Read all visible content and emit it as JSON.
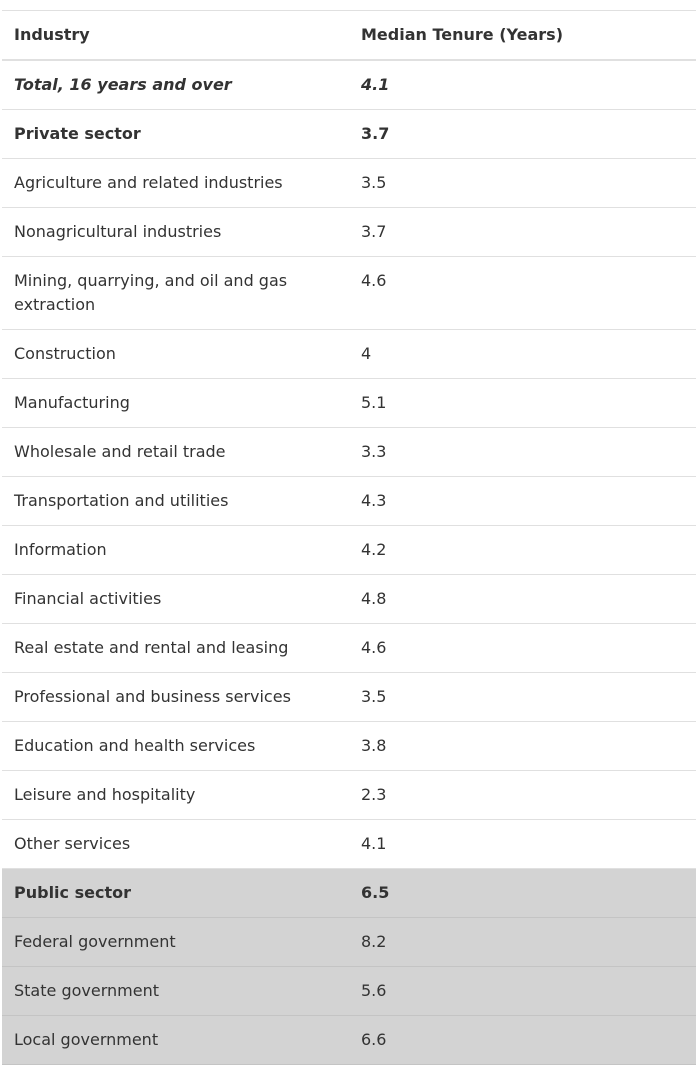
{
  "table": {
    "header": [
      "Industry",
      "Median Tenure (Years)"
    ],
    "rows": [
      [
        "Total, 16 years and over",
        "4.1"
      ],
      [
        "Private sector",
        "3.7"
      ],
      [
        "Agriculture and related industries",
        "3.5"
      ],
      [
        "Nonagricultural industries",
        "3.7"
      ],
      [
        "Mining, quarrying, and oil and gas extraction",
        "4.6"
      ],
      [
        "Construction",
        "4"
      ],
      [
        "Manufacturing",
        "5.1"
      ],
      [
        "Wholesale and retail trade",
        "3.3"
      ],
      [
        "Transportation and utilities",
        "4.3"
      ],
      [
        "Information",
        "4.2"
      ],
      [
        "Financial activities",
        "4.8"
      ],
      [
        "Real estate and rental and leasing",
        "4.6"
      ],
      [
        "Professional and business services",
        "3.5"
      ],
      [
        "Education and health services",
        "3.8"
      ],
      [
        "Leisure and hospitality",
        "2.3"
      ],
      [
        "Other services",
        "4.1"
      ],
      [
        "Public sector",
        "6.5"
      ],
      [
        "Federal government",
        "8.2"
      ],
      [
        "State government",
        "5.6"
      ],
      [
        "Local government",
        "6.6"
      ]
    ]
  }
}
